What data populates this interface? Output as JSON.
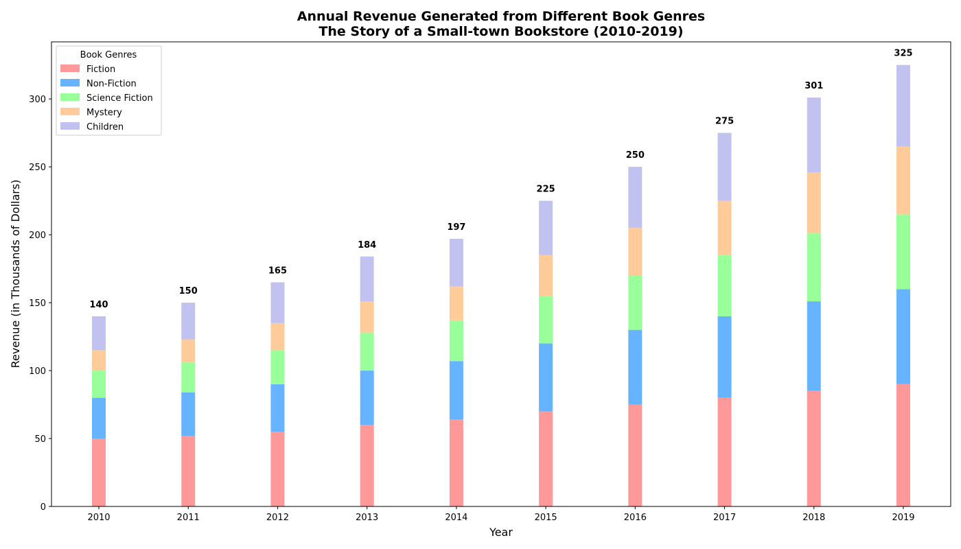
{
  "chart_data": {
    "type": "bar",
    "stacked": true,
    "title": "Annual Revenue Generated from Different Book Genres",
    "subtitle": "The Story of a Small-town Bookstore (2010-2019)",
    "xlabel": "Year",
    "ylabel": "Revenue (in Thousands of Dollars)",
    "ylim": [
      0,
      342
    ],
    "yticks": [
      0,
      50,
      100,
      150,
      200,
      250,
      300
    ],
    "grid": false,
    "legend_title": "Book Genres",
    "legend_position": "top-left",
    "categories": [
      "2010",
      "2011",
      "2012",
      "2013",
      "2014",
      "2015",
      "2016",
      "2017",
      "2018",
      "2019"
    ],
    "series": [
      {
        "name": "Fiction",
        "color": "#ff9999",
        "values": [
          50,
          52,
          55,
          60,
          64,
          70,
          75,
          80,
          85,
          90
        ]
      },
      {
        "name": "Non-Fiction",
        "color": "#66b3ff",
        "values": [
          30,
          32,
          35,
          40,
          43,
          50,
          55,
          60,
          66,
          70
        ]
      },
      {
        "name": "Science Fiction",
        "color": "#99ff99",
        "values": [
          20,
          22,
          25,
          28,
          30,
          35,
          40,
          45,
          50,
          55
        ]
      },
      {
        "name": "Mystery",
        "color": "#ffcc99",
        "values": [
          15,
          17,
          20,
          23,
          25,
          30,
          35,
          40,
          45,
          50
        ]
      },
      {
        "name": "Children",
        "color": "#c2c2f0",
        "values": [
          25,
          27,
          30,
          33,
          35,
          40,
          45,
          50,
          55,
          60
        ]
      }
    ],
    "totals": [
      "140",
      "150",
      "165",
      "184",
      "197",
      "225",
      "250",
      "275",
      "301",
      "325"
    ]
  }
}
